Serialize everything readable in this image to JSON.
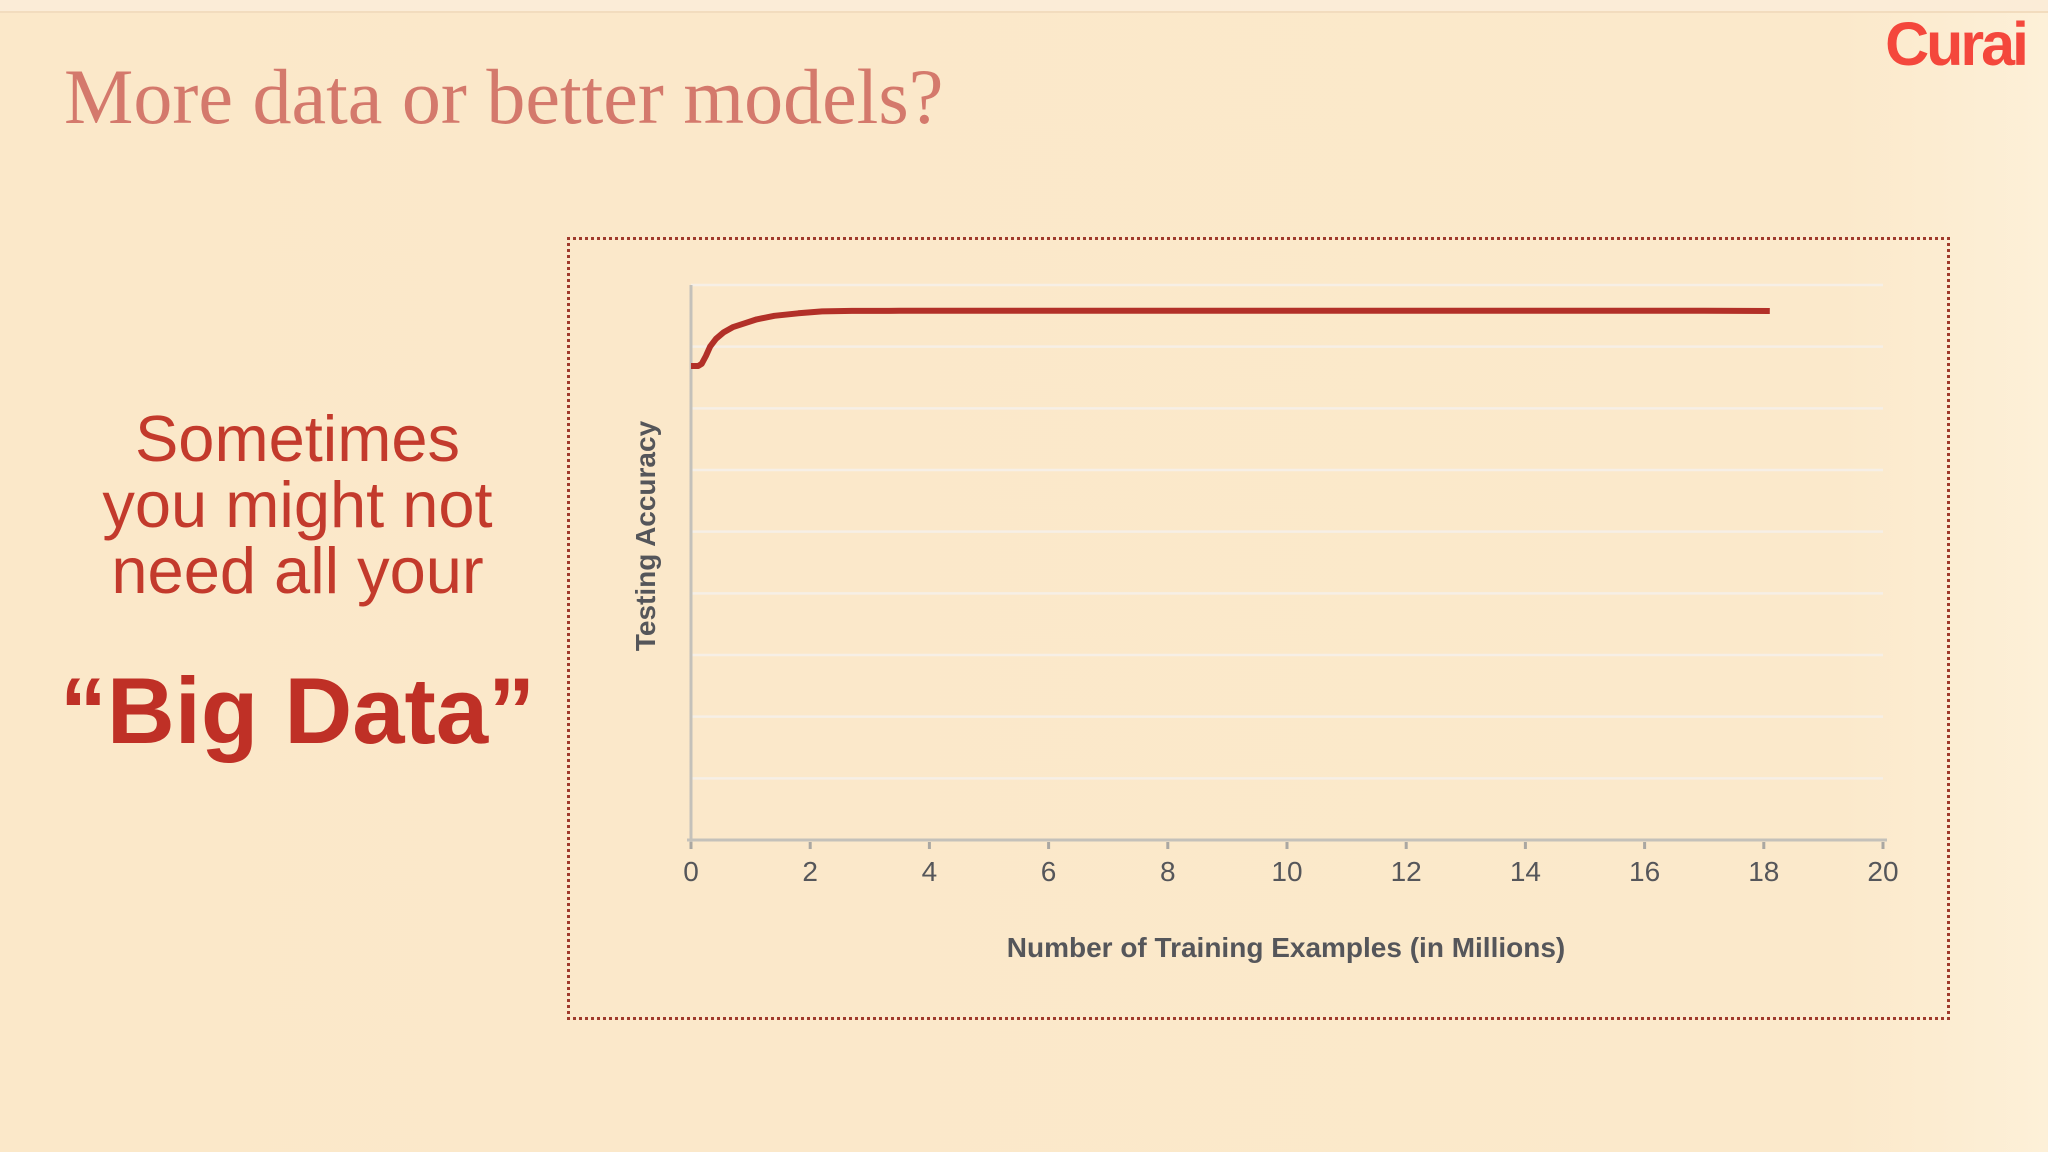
{
  "slide": {
    "title": "More data or better models?",
    "logo_text": "Curai",
    "left_text": {
      "line1": "Sometimes",
      "line2": "you might not",
      "line3": "need all your",
      "emphasis": "“Big Data”"
    }
  },
  "chart_data": {
    "type": "line",
    "title": "",
    "xlabel": "Number of Training Examples (in Millions)",
    "ylabel": "Testing Accuracy",
    "xlim": [
      0,
      20
    ],
    "ylim": [
      0,
      1
    ],
    "x_ticks": [
      0,
      2,
      4,
      6,
      8,
      10,
      12,
      14,
      16,
      18,
      20
    ],
    "y_tick_labels_shown": false,
    "h_gridlines": 9,
    "grid_on": true,
    "legend_position": "none",
    "series": [
      {
        "name": "Testing Accuracy",
        "color": "#b23028",
        "points": [
          [
            0,
            0.854
          ],
          [
            0.12,
            0.854
          ],
          [
            0.18,
            0.858
          ],
          [
            0.25,
            0.872
          ],
          [
            0.32,
            0.889
          ],
          [
            0.42,
            0.903
          ],
          [
            0.55,
            0.915
          ],
          [
            0.7,
            0.924
          ],
          [
            0.9,
            0.931
          ],
          [
            1.1,
            0.938
          ],
          [
            1.4,
            0.9445
          ],
          [
            1.8,
            0.949
          ],
          [
            2.2,
            0.9525
          ],
          [
            2.7,
            0.9533
          ],
          [
            3.5,
            0.9536
          ],
          [
            5,
            0.9536
          ],
          [
            7,
            0.9536
          ],
          [
            9,
            0.9536
          ],
          [
            11,
            0.9536
          ],
          [
            13,
            0.9536
          ],
          [
            15,
            0.9536
          ],
          [
            17,
            0.9536
          ],
          [
            18.1,
            0.9532
          ]
        ]
      }
    ]
  },
  "colors": {
    "background": "#fbe9cb",
    "title": "#d4796c",
    "body_red": "#c33a2c",
    "emphasis_red": "#bf3026",
    "logo_red": "#f4473c",
    "line_red": "#b23028",
    "dotted_border": "#a03a2c",
    "axis_gray": "#c4c1ba",
    "tick_text_gray": "#55565a",
    "gridline": "#f6efe6"
  }
}
